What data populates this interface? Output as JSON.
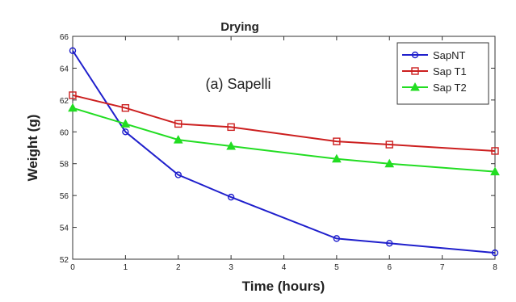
{
  "chart_data": {
    "type": "line",
    "title": "Drying",
    "annotation": "(a) Sapelli",
    "xlabel": "Time (hours)",
    "ylabel": "Weight (g)",
    "xlim": [
      0,
      8
    ],
    "ylim": [
      52,
      66
    ],
    "xticks": [
      "0",
      "1",
      "2",
      "3",
      "4",
      "5",
      "6",
      "7",
      "8"
    ],
    "yticks": [
      "52",
      "54",
      "56",
      "58",
      "60",
      "62",
      "64",
      "66"
    ],
    "grid": false,
    "legend_position": "top-right",
    "series": [
      {
        "name": "SapNT",
        "color": "#1f1fcc",
        "marker": "circle",
        "x": [
          0,
          1,
          2,
          3,
          5,
          6,
          8
        ],
        "y": [
          65.1,
          60.0,
          57.3,
          55.9,
          53.3,
          53.0,
          52.4
        ]
      },
      {
        "name": "Sap T1",
        "color": "#cc1f1f",
        "marker": "square",
        "x": [
          0,
          1,
          2,
          3,
          5,
          6,
          8
        ],
        "y": [
          62.3,
          61.5,
          60.5,
          60.3,
          59.4,
          59.2,
          58.8
        ]
      },
      {
        "name": "Sap T2",
        "color": "#22dd22",
        "marker": "triangle",
        "x": [
          0,
          1,
          2,
          3,
          5,
          6,
          8
        ],
        "y": [
          61.5,
          60.5,
          59.5,
          59.1,
          58.3,
          58.0,
          57.5
        ]
      }
    ]
  }
}
